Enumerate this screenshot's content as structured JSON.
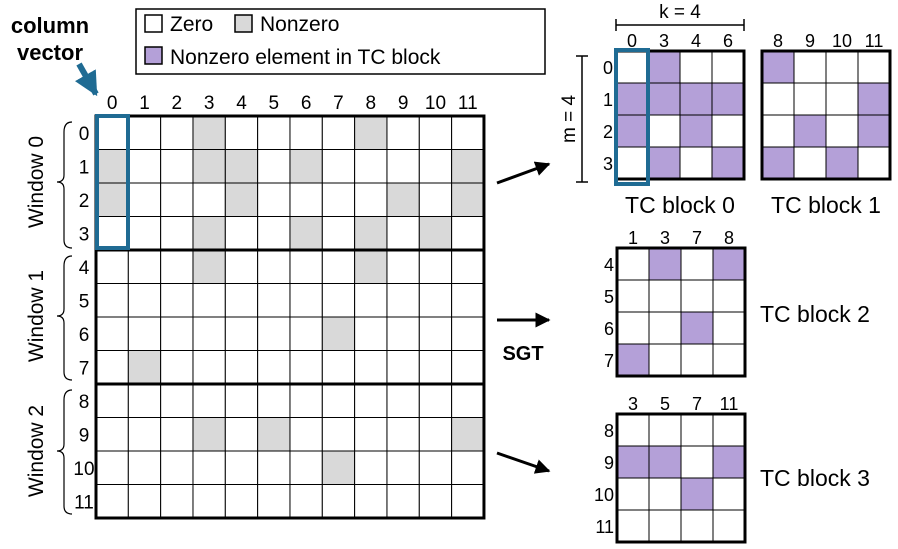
{
  "colors": {
    "zero": "#ffffff",
    "nonzero": "#d9d9d9",
    "tc": "#b4a0d8",
    "highlight": "#1f6b93",
    "border": "#000000"
  },
  "title": {
    "line1": "column",
    "line2": "vector"
  },
  "legend": {
    "zero": "Zero",
    "nonzero": "Nonzero",
    "tc": "Nonzero element in TC block"
  },
  "matrix": {
    "col_labels": [
      "0",
      "1",
      "2",
      "3",
      "4",
      "5",
      "6",
      "7",
      "8",
      "9",
      "10",
      "11"
    ],
    "row_labels": [
      "0",
      "1",
      "2",
      "3",
      "4",
      "5",
      "6",
      "7",
      "8",
      "9",
      "10",
      "11"
    ],
    "windows": [
      "Window 0",
      "Window 1",
      "Window 2"
    ],
    "nonzeros": [
      [
        0,
        3
      ],
      [
        0,
        8
      ],
      [
        1,
        0
      ],
      [
        1,
        3
      ],
      [
        1,
        4
      ],
      [
        1,
        6
      ],
      [
        1,
        11
      ],
      [
        2,
        0
      ],
      [
        2,
        4
      ],
      [
        2,
        9
      ],
      [
        2,
        11
      ],
      [
        3,
        3
      ],
      [
        3,
        6
      ],
      [
        3,
        8
      ],
      [
        3,
        10
      ],
      [
        4,
        3
      ],
      [
        4,
        8
      ],
      [
        6,
        7
      ],
      [
        7,
        1
      ],
      [
        9,
        3
      ],
      [
        9,
        5
      ],
      [
        9,
        11
      ],
      [
        10,
        7
      ]
    ]
  },
  "blocks": [
    {
      "title": "TC block 0",
      "cols": [
        "0",
        "3",
        "4",
        "6"
      ],
      "rows": [
        "0",
        "1",
        "2",
        "3"
      ],
      "cells": [
        [
          0,
          1,
          0,
          0
        ],
        [
          1,
          1,
          1,
          1
        ],
        [
          1,
          0,
          1,
          0
        ],
        [
          0,
          1,
          0,
          1
        ]
      ]
    },
    {
      "title": "TC block 1",
      "cols": [
        "8",
        "9",
        "10",
        "11"
      ],
      "rows": [],
      "cells": [
        [
          1,
          0,
          0,
          0
        ],
        [
          0,
          0,
          0,
          1
        ],
        [
          0,
          1,
          0,
          1
        ],
        [
          1,
          0,
          1,
          0
        ]
      ]
    },
    {
      "title": "TC block 2",
      "cols": [
        "1",
        "3",
        "7",
        "8"
      ],
      "rows": [
        "4",
        "5",
        "6",
        "7"
      ],
      "cells": [
        [
          0,
          1,
          0,
          1
        ],
        [
          0,
          0,
          0,
          0
        ],
        [
          0,
          0,
          1,
          0
        ],
        [
          1,
          0,
          0,
          0
        ]
      ]
    },
    {
      "title": "TC block 3",
      "cols": [
        "3",
        "5",
        "7",
        "11"
      ],
      "rows": [
        "8",
        "9",
        "10",
        "11"
      ],
      "cells": [
        [
          0,
          0,
          0,
          0
        ],
        [
          1,
          1,
          0,
          1
        ],
        [
          0,
          0,
          1,
          0
        ],
        [
          0,
          0,
          0,
          0
        ]
      ]
    }
  ],
  "dim_k": "k = 4",
  "dim_m": "m = 4",
  "arrow_label": "SGT"
}
